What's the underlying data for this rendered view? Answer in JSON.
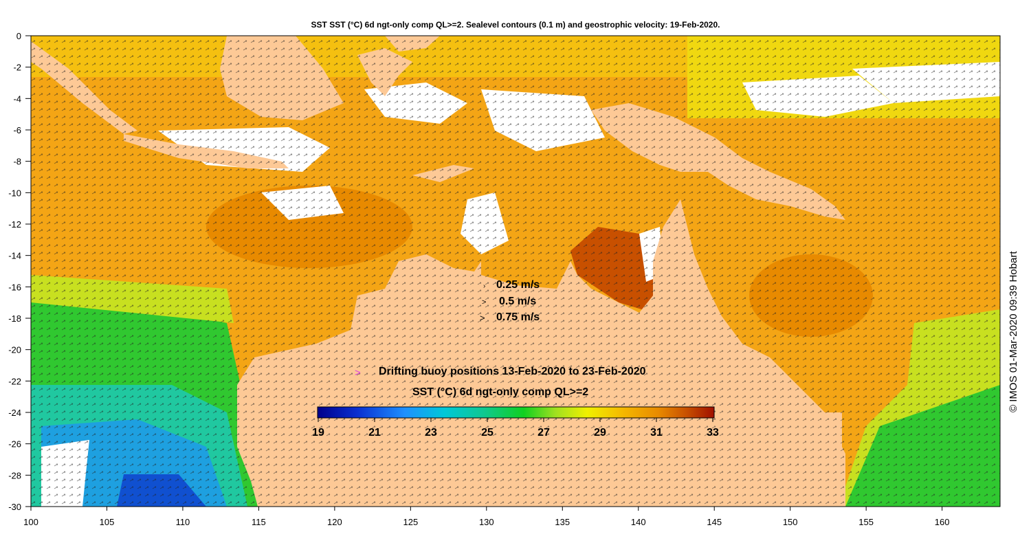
{
  "title": "SST SST (°C) 6d ngt-only comp QL>=2. Sealevel contours (0.1 m) and geostrophic velocity: 19-Feb-2020.",
  "credit": "© IMOS 01-Mar-2020 09:39 Hobart",
  "velocity_legend": [
    {
      "label": "0.25 m/s",
      "symbol": "›"
    },
    {
      "label": "0.5 m/s",
      "symbol": ">"
    },
    {
      "label": "0.75 m/s",
      "symbol": ">"
    }
  ],
  "buoy_legend": {
    "label": "Drifting buoy positions 13-Feb-2020 to 23-Feb-2020",
    "symbol": ">",
    "color": "#e040e0"
  },
  "colorbar": {
    "title": "SST (°C) 6d ngt-only comp QL>=2",
    "ticks": [
      "19",
      "21",
      "23",
      "25",
      "27",
      "29",
      "31",
      "33"
    ],
    "min": 19,
    "max": 33
  },
  "axes": {
    "x_ticks": [
      "100",
      "105",
      "110",
      "115",
      "120",
      "125",
      "130",
      "135",
      "140",
      "145",
      "150",
      "155",
      "160"
    ],
    "y_ticks": [
      "0",
      "-2",
      "-4",
      "-6",
      "-8",
      "-10",
      "-12",
      "-14",
      "-16",
      "-18",
      "-20",
      "-22",
      "-24",
      "-26",
      "-28",
      "-30"
    ],
    "lon_range": [
      100,
      164
    ],
    "lat_range": [
      -30,
      0
    ]
  },
  "colors": {
    "land": "#fdc996",
    "no_data": "#ffffff"
  }
}
